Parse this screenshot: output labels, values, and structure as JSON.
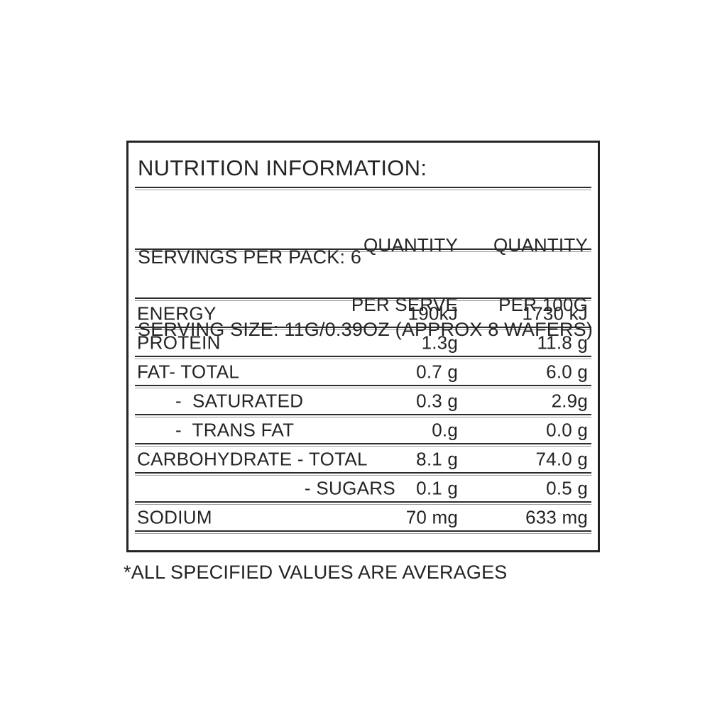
{
  "panel": {
    "title": "NUTRITION INFORMATION:",
    "servings_per_pack": "SERVINGS PER PACK: 6",
    "serving_size": "SERVING SIZE: 11G/0.39OZ (APPROX 8 WAFERS)",
    "columns": {
      "per_serve_line1": "QUANTITY",
      "per_serve_line2": "PER SERVE",
      "per_100g_line1": "QUANTITY",
      "per_100g_line2": "PER 100G"
    },
    "rows": [
      {
        "label": "ENERGY",
        "per_serve": "190kJ",
        "per_100g": "1730 kJ"
      },
      {
        "label": "PROTEIN",
        "per_serve": "1.3g",
        "per_100g": "11.8 g"
      },
      {
        "label": "FAT- TOTAL",
        "per_serve": "0.7 g",
        "per_100g": "6.0 g"
      },
      {
        "label": "-  SATURATED",
        "per_serve": "0.3 g",
        "per_100g": "2.9g"
      },
      {
        "label": "-  TRANS FAT",
        "per_serve": "0.g",
        "per_100g": "0.0 g"
      },
      {
        "label": "CARBOHYDRATE - TOTAL",
        "per_serve": "8.1 g",
        "per_100g": "74.0 g"
      },
      {
        "label": "- SUGARS",
        "per_serve": "0.1 g",
        "per_100g": "0.5 g"
      },
      {
        "label": "SODIUM",
        "per_serve": "70 mg",
        "per_100g": "633 mg"
      }
    ],
    "footnote": "*ALL SPECIFIED VALUES ARE AVERAGES",
    "colors": {
      "ink": "#242424",
      "rule_shadow": "#9e9e9e",
      "background": "#ffffff"
    }
  }
}
